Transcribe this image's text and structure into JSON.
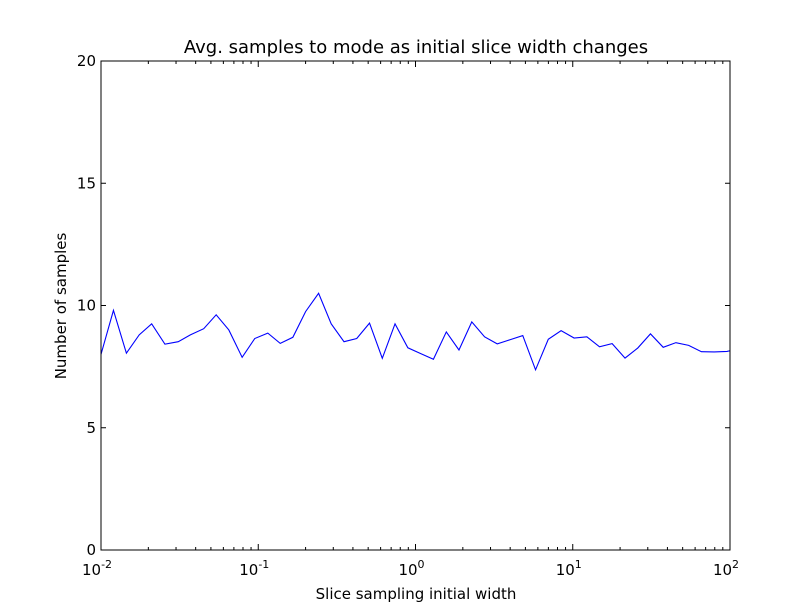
{
  "chart_data": {
    "type": "line",
    "title": "Avg. samples to mode as initial slice width changes",
    "xlabel": "Slice sampling initial width",
    "ylabel": "Number of samples",
    "xscale": "log",
    "xlim": [
      0.01,
      100
    ],
    "ylim": [
      0,
      20
    ],
    "x_ticks": [
      {
        "base": "10",
        "exp": "-2",
        "value": 0.01
      },
      {
        "base": "10",
        "exp": "-1",
        "value": 0.1
      },
      {
        "base": "10",
        "exp": "0",
        "value": 1
      },
      {
        "base": "10",
        "exp": "1",
        "value": 10
      },
      {
        "base": "10",
        "exp": "2",
        "value": 100
      }
    ],
    "y_ticks": [
      0,
      5,
      10,
      15,
      20
    ],
    "y_tick_labels": [
      "0",
      "5",
      "10",
      "15",
      "20"
    ],
    "grid": false,
    "line_color": "#0000ff",
    "series": [
      {
        "x": [
          0.01,
          0.012,
          0.0145,
          0.0175,
          0.021,
          0.0255,
          0.031,
          0.037,
          0.045,
          0.054,
          0.065,
          0.079,
          0.095,
          0.115,
          0.138,
          0.166,
          0.2,
          0.242,
          0.291,
          0.351,
          0.423,
          0.51,
          0.615,
          0.741,
          0.894,
          1.08,
          1.3,
          1.57,
          1.89,
          2.28,
          2.75,
          3.31,
          3.99,
          4.81,
          5.8,
          6.99,
          8.43,
          10.2,
          12.3,
          14.8,
          17.8,
          21.5,
          25.9,
          31.2,
          37.6,
          45.3,
          54.6,
          65.8,
          79.4,
          95.7,
          100
        ],
        "y": [
          8.0,
          9.8,
          8.05,
          8.8,
          9.25,
          8.42,
          8.52,
          8.8,
          9.05,
          9.62,
          9.0,
          7.88,
          8.65,
          8.87,
          8.45,
          8.7,
          9.75,
          10.5,
          9.25,
          8.52,
          8.65,
          9.28,
          7.84,
          9.25,
          8.27,
          8.03,
          7.8,
          8.92,
          8.18,
          9.33,
          8.72,
          8.43,
          8.6,
          8.77,
          7.37,
          8.62,
          8.97,
          8.67,
          8.72,
          8.31,
          8.44,
          7.85,
          8.26,
          8.84,
          8.29,
          8.48,
          8.37,
          8.11,
          8.1,
          8.12,
          8.15
        ]
      }
    ]
  }
}
